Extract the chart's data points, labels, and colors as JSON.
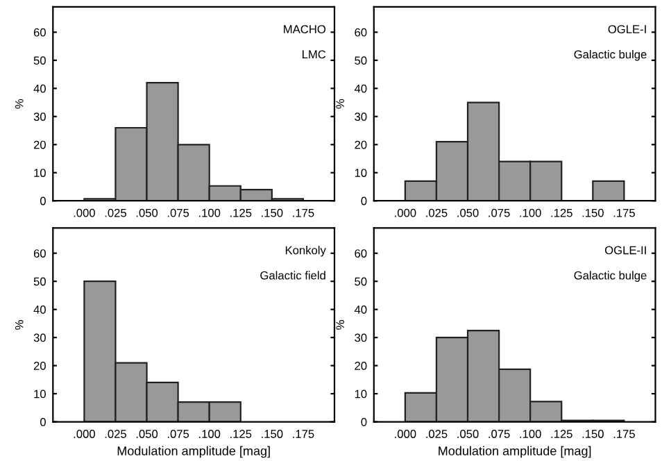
{
  "chart_data": [
    {
      "type": "histogram",
      "ylabel": "%",
      "annotations": [
        "MACHO",
        "LMC"
      ],
      "bins": [
        0,
        0.025,
        0.05,
        0.075,
        0.1,
        0.125,
        0.15,
        0.175
      ],
      "values": [
        0.7,
        26,
        42,
        20,
        5.3,
        4,
        0.7
      ],
      "color": "#999999",
      "xlim": [
        -0.025,
        0.2
      ],
      "ylim": [
        0,
        69
      ],
      "xticks": [
        {
          "value": 0,
          "label": ".000"
        },
        {
          "value": 0.025,
          "label": ".025"
        },
        {
          "value": 0.05,
          "label": ".050"
        },
        {
          "value": 0.075,
          "label": ".075"
        },
        {
          "value": 0.1,
          "label": ".100"
        },
        {
          "value": 0.125,
          "label": ".125"
        },
        {
          "value": 0.15,
          "label": ".150"
        },
        {
          "value": 0.175,
          "label": ".175"
        }
      ],
      "yticks": [
        0,
        10,
        20,
        30,
        40,
        50,
        60
      ],
      "grid": false
    },
    {
      "type": "histogram",
      "ylabel": "%",
      "annotations": [
        "OGLE-I",
        "Galactic bulge"
      ],
      "bins": [
        0,
        0.025,
        0.05,
        0.075,
        0.1,
        0.125,
        0.15,
        0.175
      ],
      "values": [
        7,
        21,
        35,
        14,
        14,
        0,
        7
      ],
      "color": "#999999",
      "xlim": [
        -0.025,
        0.2
      ],
      "ylim": [
        0,
        69
      ],
      "xticks": [
        {
          "value": 0,
          "label": ".000"
        },
        {
          "value": 0.025,
          "label": ".025"
        },
        {
          "value": 0.05,
          "label": ".050"
        },
        {
          "value": 0.075,
          "label": ".075"
        },
        {
          "value": 0.1,
          "label": ".100"
        },
        {
          "value": 0.125,
          "label": ".125"
        },
        {
          "value": 0.15,
          "label": ".150"
        },
        {
          "value": 0.175,
          "label": ".175"
        }
      ],
      "yticks": [
        0,
        10,
        20,
        30,
        40,
        50,
        60
      ],
      "grid": false
    },
    {
      "type": "histogram",
      "ylabel": "%",
      "xlabel": "Modulation amplitude [mag]",
      "annotations": [
        "Konkoly",
        "Galactic field"
      ],
      "bins": [
        0,
        0.025,
        0.05,
        0.075,
        0.1,
        0.125,
        0.15,
        0.175
      ],
      "values": [
        50,
        21,
        14,
        7,
        7,
        0,
        0
      ],
      "color": "#999999",
      "xlim": [
        -0.025,
        0.2
      ],
      "ylim": [
        0,
        69
      ],
      "xticks": [
        {
          "value": 0,
          "label": ".000"
        },
        {
          "value": 0.025,
          "label": ".025"
        },
        {
          "value": 0.05,
          "label": ".050"
        },
        {
          "value": 0.075,
          "label": ".075"
        },
        {
          "value": 0.1,
          "label": ".100"
        },
        {
          "value": 0.125,
          "label": ".125"
        },
        {
          "value": 0.15,
          "label": ".150"
        },
        {
          "value": 0.175,
          "label": ".175"
        }
      ],
      "yticks": [
        0,
        10,
        20,
        30,
        40,
        50,
        60
      ],
      "grid": false
    },
    {
      "type": "histogram",
      "ylabel": "%",
      "xlabel": "Modulation amplitude [mag]",
      "annotations": [
        "OGLE-II",
        "Galactic bulge"
      ],
      "bins": [
        0,
        0.025,
        0.05,
        0.075,
        0.1,
        0.125,
        0.15,
        0.175
      ],
      "values": [
        10.3,
        30,
        32.5,
        18.7,
        7.2,
        0.5,
        0.5
      ],
      "color": "#999999",
      "xlim": [
        -0.025,
        0.2
      ],
      "ylim": [
        0,
        69
      ],
      "xticks": [
        {
          "value": 0,
          "label": ".000"
        },
        {
          "value": 0.025,
          "label": ".025"
        },
        {
          "value": 0.05,
          "label": ".050"
        },
        {
          "value": 0.075,
          "label": ".075"
        },
        {
          "value": 0.1,
          "label": ".100"
        },
        {
          "value": 0.125,
          "label": ".125"
        },
        {
          "value": 0.15,
          "label": ".150"
        },
        {
          "value": 0.175,
          "label": ".175"
        }
      ],
      "yticks": [
        0,
        10,
        20,
        30,
        40,
        50,
        60
      ],
      "grid": false
    }
  ]
}
